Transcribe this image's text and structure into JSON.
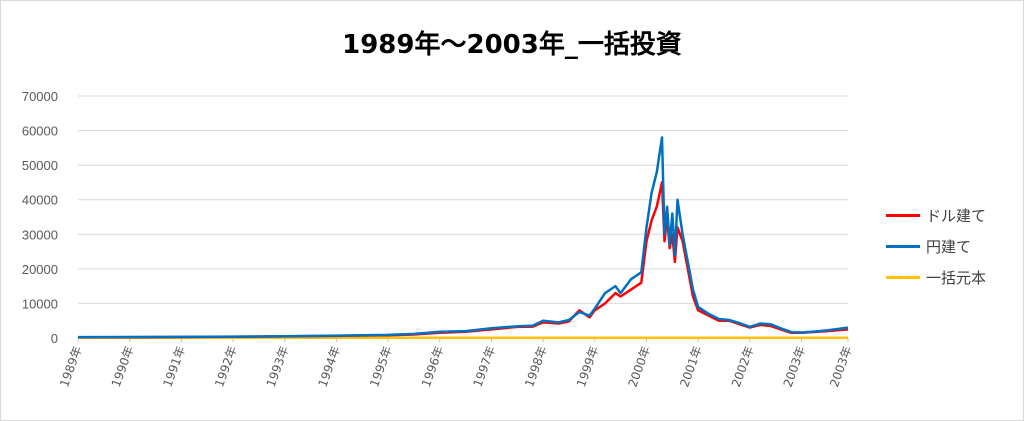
{
  "chart_data": {
    "type": "line",
    "title": "1989年～2003年_一括投資",
    "xlabel": "",
    "ylabel": "",
    "ylim": [
      0,
      70000
    ],
    "yticks": [
      0,
      10000,
      20000,
      30000,
      40000,
      50000,
      60000,
      70000
    ],
    "xlim": [
      1989,
      2003.9
    ],
    "x_tick_labels": [
      "1989年",
      "1990年",
      "1991年",
      "1992年",
      "1993年",
      "1994年",
      "1995年",
      "1996年",
      "1997年",
      "1998年",
      "1999年",
      "2000年",
      "2001年",
      "2002年",
      "2003年",
      "2003年"
    ],
    "x_tick_values": [
      1989,
      1990,
      1991,
      1992,
      1993,
      1994,
      1995,
      1996,
      1997,
      1998,
      1999,
      2000,
      2001,
      2002,
      2003,
      2003.9
    ],
    "grid": true,
    "legend_position": "right",
    "series": [
      {
        "name": "ドル建て",
        "color": "#ff0000",
        "x": [
          1989.0,
          1990.0,
          1991.0,
          1992.0,
          1993.0,
          1994.0,
          1995.0,
          1995.5,
          1996.0,
          1996.5,
          1997.0,
          1997.5,
          1997.8,
          1998.0,
          1998.3,
          1998.5,
          1998.7,
          1998.9,
          1999.0,
          1999.2,
          1999.4,
          1999.5,
          1999.7,
          1999.9,
          2000.0,
          2000.1,
          2000.2,
          2000.3,
          2000.35,
          2000.4,
          2000.45,
          2000.5,
          2000.55,
          2000.6,
          2000.7,
          2000.8,
          2000.9,
          2001.0,
          2001.2,
          2001.4,
          2001.6,
          2001.8,
          2002.0,
          2002.2,
          2002.4,
          2002.6,
          2002.8,
          2003.0,
          2003.2,
          2003.5,
          2003.9
        ],
        "y": [
          200,
          220,
          300,
          350,
          450,
          600,
          800,
          1000,
          1500,
          1800,
          2500,
          3200,
          3300,
          4500,
          4200,
          4800,
          8000,
          6000,
          8000,
          10000,
          13000,
          12000,
          14000,
          16000,
          28000,
          34000,
          38000,
          45000,
          28000,
          35000,
          26000,
          30000,
          22000,
          32000,
          28000,
          20000,
          12000,
          8000,
          6500,
          5000,
          5000,
          4000,
          3000,
          3800,
          3500,
          2500,
          1500,
          1500,
          1700,
          2000,
          2500
        ]
      },
      {
        "name": "円建て",
        "color": "#0070c0",
        "x": [
          1989.0,
          1990.0,
          1991.0,
          1992.0,
          1993.0,
          1994.0,
          1995.0,
          1995.5,
          1996.0,
          1996.5,
          1997.0,
          1997.5,
          1997.8,
          1998.0,
          1998.3,
          1998.5,
          1998.7,
          1998.9,
          1999.0,
          1999.2,
          1999.4,
          1999.5,
          1999.7,
          1999.9,
          2000.0,
          2000.1,
          2000.2,
          2000.3,
          2000.35,
          2000.4,
          2000.45,
          2000.5,
          2000.55,
          2000.6,
          2000.7,
          2000.8,
          2000.9,
          2001.0,
          2001.2,
          2001.4,
          2001.6,
          2001.8,
          2002.0,
          2002.2,
          2002.4,
          2002.6,
          2002.8,
          2003.0,
          2003.2,
          2003.5,
          2003.9
        ],
        "y": [
          250,
          280,
          330,
          400,
          500,
          700,
          900,
          1200,
          1800,
          2000,
          2800,
          3400,
          3600,
          5000,
          4500,
          5200,
          7500,
          6500,
          8500,
          13000,
          15000,
          13000,
          17000,
          19000,
          32000,
          42000,
          48000,
          58000,
          30000,
          38000,
          27000,
          36000,
          24000,
          40000,
          30000,
          22000,
          14000,
          9000,
          7000,
          5500,
          5200,
          4300,
          3200,
          4200,
          4000,
          2800,
          1700,
          1600,
          1800,
          2200,
          3000
        ]
      },
      {
        "name": "一括元本",
        "color": "#ffc000",
        "x": [
          1989.0,
          2003.9
        ],
        "y": [
          100,
          100
        ]
      }
    ]
  }
}
